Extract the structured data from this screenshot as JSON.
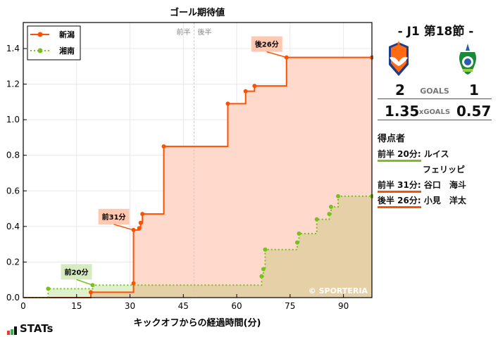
{
  "chart_data": {
    "type": "line",
    "subtype": "step-cumulative-area",
    "title": "ゴール期待値",
    "xlabel": "キックオフからの経過時間(分)",
    "ylabel": "",
    "xlim": [
      0,
      98
    ],
    "ylim": [
      0,
      1.55
    ],
    "x_ticks": [
      0,
      15,
      30,
      45,
      60,
      75,
      90
    ],
    "y_ticks": [
      0.0,
      0.2,
      0.4,
      0.6,
      0.8,
      1.0,
      1.2,
      1.4
    ],
    "y_tick_labels": [
      "0.0",
      "0.2",
      "0.4",
      "0.6",
      "0.8",
      "1.0",
      "1.2",
      "1.4"
    ],
    "grid": true,
    "legend_position": "upper left",
    "halftime_marker": {
      "x": 48,
      "left_label": "前半",
      "right_label": "後半"
    },
    "series": [
      {
        "name": "新潟",
        "color": "#ff5000",
        "fill": "#ffd9cc",
        "line_style": "solid",
        "points": [
          [
            19,
            0.03
          ],
          [
            31,
            0.08
          ],
          [
            31,
            0.38
          ],
          [
            32.6,
            0.39
          ],
          [
            33,
            0.42
          ],
          [
            33.5,
            0.47
          ],
          [
            39.5,
            0.85
          ],
          [
            57.5,
            1.09
          ],
          [
            62.5,
            1.16
          ],
          [
            65,
            1.19
          ],
          [
            74,
            1.35
          ],
          [
            98,
            1.35
          ]
        ]
      },
      {
        "name": "湘南",
        "color": "#77c01e",
        "fill": "#dff0cc",
        "line_style": "dotted",
        "points": [
          [
            7,
            0.05
          ],
          [
            19.5,
            0.07
          ],
          [
            67,
            0.12
          ],
          [
            67.5,
            0.16
          ],
          [
            68,
            0.27
          ],
          [
            77,
            0.31
          ],
          [
            77.5,
            0.36
          ],
          [
            82.5,
            0.44
          ],
          [
            86,
            0.47
          ],
          [
            86.5,
            0.51
          ],
          [
            88.5,
            0.57
          ],
          [
            98,
            0.57
          ]
        ]
      }
    ],
    "annotations": [
      {
        "text": "前20分",
        "x": 19.5,
        "y": 0.07,
        "team": "湘南"
      },
      {
        "text": "前31分",
        "x": 31,
        "y": 0.38,
        "team": "新潟"
      },
      {
        "text": "後26分",
        "x": 74,
        "y": 1.35,
        "team": "新潟"
      }
    ],
    "watermark": "© SPORTERIA"
  },
  "sidebar": {
    "round": "- J1 第18節 -",
    "home": {
      "name": "新潟",
      "crest": "albirex-crest-icon",
      "goals": "2",
      "xg": "1.35"
    },
    "away": {
      "name": "湘南",
      "crest": "bellmare-crest-icon",
      "goals": "1",
      "xg": "0.57"
    },
    "goals_label": "GOALS",
    "xg_label": "xGOALS",
    "scorers_title": "得点者",
    "scorers": [
      {
        "time": "前半 20分:",
        "name": "ルイス",
        "name2": "フェリッピ",
        "color": "#77c01e"
      },
      {
        "time": "前半 31分:",
        "name": "谷口　海斗",
        "name2": "",
        "color": "#ff5000"
      },
      {
        "time": "後半 26分:",
        "name": "小見　洋太",
        "name2": "",
        "color": "#ff5000"
      }
    ]
  },
  "footer": {
    "brand": "STATs"
  }
}
